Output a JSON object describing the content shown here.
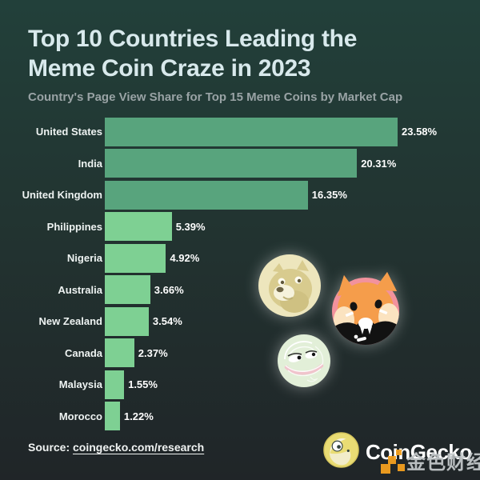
{
  "header": {
    "title_line1": "Top 10 Countries Leading the",
    "title_line2": "Meme Coin Craze in 2023",
    "subtitle": "Country's Page View Share for Top 15 Meme Coins by Market Cap"
  },
  "chart_data": {
    "type": "bar",
    "orientation": "horizontal",
    "title": "Top 10 Countries Leading the Meme Coin Craze in 2023",
    "subtitle": "Country's Page View Share for Top 15 Meme Coins by Market Cap",
    "categories": [
      "United States",
      "India",
      "United Kingdom",
      "Philippines",
      "Nigeria",
      "Australia",
      "New Zealand",
      "Canada",
      "Malaysia",
      "Morocco"
    ],
    "values": [
      23.58,
      20.31,
      16.35,
      5.39,
      4.92,
      3.66,
      3.54,
      2.37,
      1.55,
      1.22
    ],
    "value_labels": [
      "23.58%",
      "20.31%",
      "16.35%",
      "5.39%",
      "4.92%",
      "3.66%",
      "3.54%",
      "2.37%",
      "1.55%",
      "1.22%"
    ],
    "xlim": [
      0,
      24
    ],
    "grid": false,
    "legend": false,
    "bar_color_top3": "#58a47d",
    "bar_color_rest": "#7ed093",
    "label_color": "#eef3f2",
    "value_color": "#ffffff"
  },
  "decorations": {
    "icons": [
      "dogecoin-icon",
      "shiba-inu-icon",
      "pepe-icon"
    ]
  },
  "footer": {
    "source_prefix": "Source: ",
    "source_link": "coingecko.com/research",
    "brand_name": "CoinGecko"
  },
  "watermark": {
    "text": "金色财经",
    "icon_color": "#f5a11f"
  },
  "colors": {
    "background_top": "#22403a",
    "background_bottom": "#202528",
    "title": "#d8e9ec",
    "subtitle": "#99a3a5"
  }
}
